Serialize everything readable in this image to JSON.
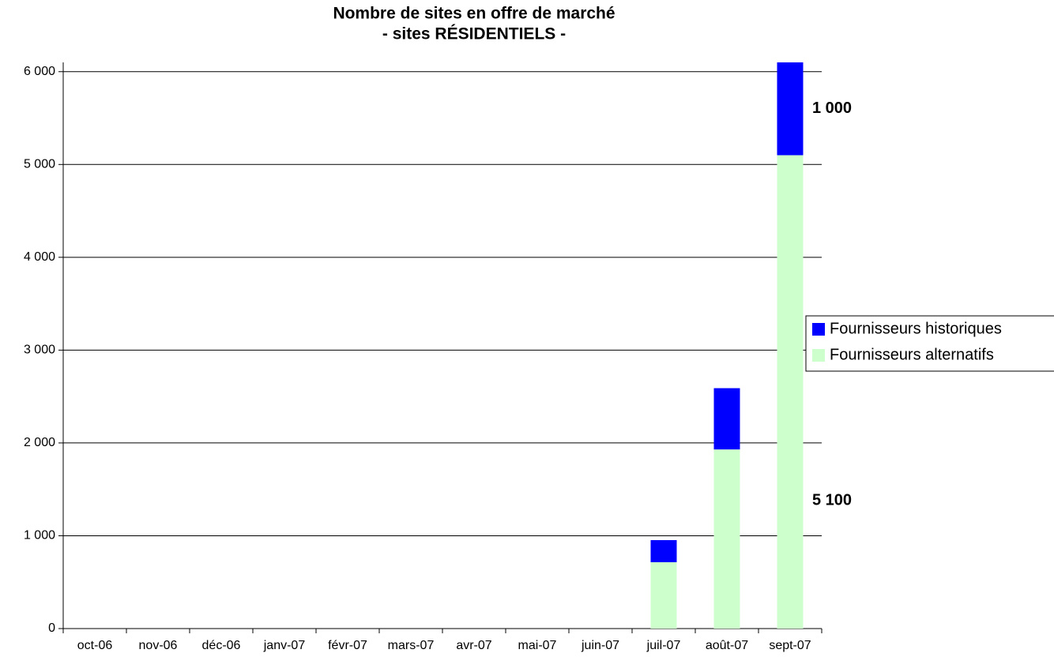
{
  "chart_data": {
    "type": "stacked_bar",
    "title": "Nombre de sites en offre de marché",
    "subtitle": "- sites RÉSIDENTIELS -",
    "categories": [
      "oct-06",
      "nov-06",
      "déc-06",
      "janv-07",
      "févr-07",
      "mars-07",
      "avr-07",
      "mai-07",
      "juin-07",
      "juil-07",
      "août-07",
      "sept-07"
    ],
    "series": [
      {
        "name": "Fournisseurs historiques",
        "color": "#0000ff",
        "values": [
          0,
          0,
          0,
          0,
          0,
          0,
          0,
          0,
          0,
          238,
          660,
          1000
        ],
        "value_labels": [
          null,
          null,
          null,
          null,
          null,
          null,
          null,
          null,
          null,
          null,
          null,
          "1 000"
        ]
      },
      {
        "name": "Fournisseurs alternatifs",
        "color": "#ccffcc",
        "values": [
          0,
          0,
          0,
          0,
          0,
          0,
          0,
          0,
          0,
          715,
          1930,
          5100
        ],
        "value_labels": [
          null,
          null,
          null,
          null,
          null,
          null,
          null,
          null,
          null,
          null,
          null,
          "5 100"
        ]
      }
    ],
    "ylim": [
      0,
      6100
    ],
    "yticks": [
      0,
      {
        "value": 1000,
        "label": "1 000"
      },
      {
        "value": 2000,
        "label": "2 000"
      },
      {
        "value": 3000,
        "label": "3 000"
      },
      {
        "value": 4000,
        "label": "4 000"
      },
      {
        "value": 5000,
        "label": "5 000"
      },
      {
        "value": 6000,
        "label": "6 000"
      }
    ],
    "grid": true,
    "legend": "right"
  }
}
